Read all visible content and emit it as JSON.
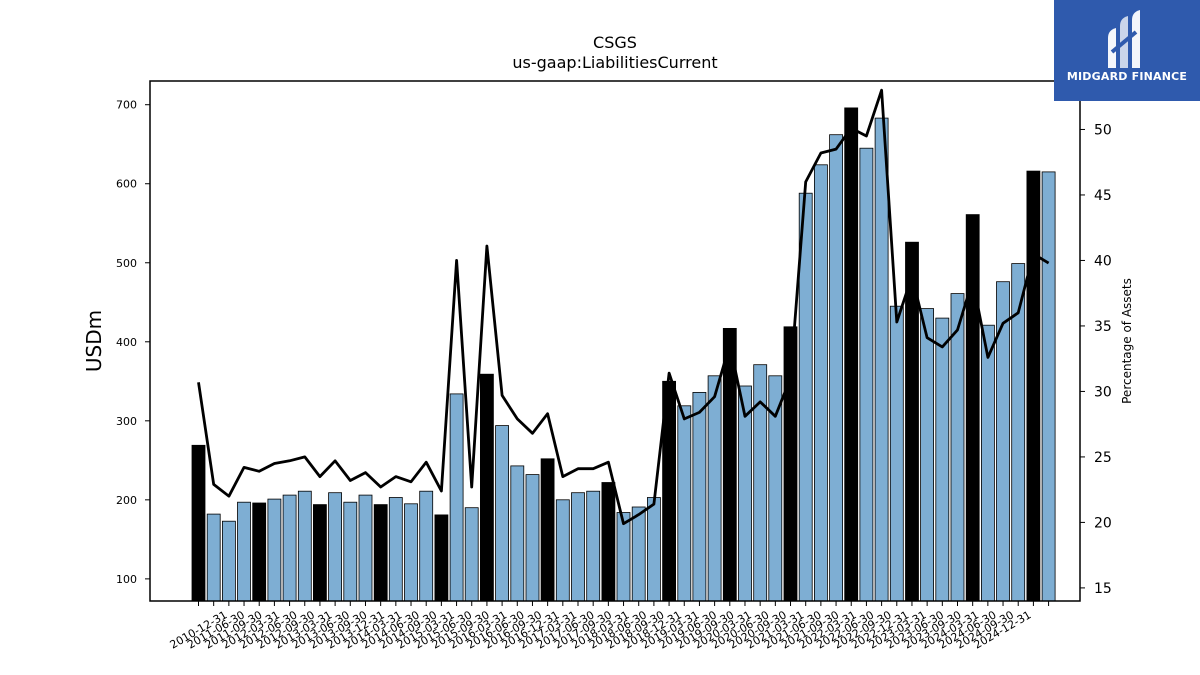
{
  "chart_data": {
    "type": "bar",
    "title": "CSGS",
    "subtitle": "us-gaap:LiabilitiesCurrent",
    "ylabel": "USDm",
    "y2label": "Percentage of Assets",
    "ylim": [
      72,
      730
    ],
    "y2lim": [
      14,
      53.7
    ],
    "yticks": [
      100,
      200,
      300,
      400,
      500,
      600,
      700
    ],
    "y2ticks": [
      15,
      20,
      25,
      30,
      35,
      40,
      45,
      50
    ],
    "categories": [
      "2010-12-31",
      "2011-03-31",
      "2011-06-30",
      "2011-09-30",
      "2011-12-31",
      "2012-03-31",
      "2012-06-30",
      "2012-09-30",
      "2012-12-31",
      "2013-03-31",
      "2013-06-30",
      "2013-09-30",
      "2013-12-31",
      "2014-03-31",
      "2014-06-30",
      "2014-09-30",
      "2014-12-31",
      "2015-03-31",
      "2015-06-30",
      "2015-09-30",
      "2015-12-31",
      "2016-03-31",
      "2016-06-30",
      "2016-09-30",
      "2016-12-31",
      "2017-03-31",
      "2017-06-30",
      "2017-09-30",
      "2017-12-31",
      "2018-03-31",
      "2018-06-30",
      "2018-09-30",
      "2018-12-31",
      "2019-03-31",
      "2019-06-30",
      "2019-09-30",
      "2019-12-31",
      "2020-03-31",
      "2020-06-30",
      "2020-09-30",
      "2020-12-31",
      "2021-03-31",
      "2021-06-30",
      "2021-09-30",
      "2021-12-31",
      "2022-03-31",
      "2022-06-30",
      "2022-09-30",
      "2022-12-31",
      "2023-03-31",
      "2023-06-30",
      "2023-09-30",
      "2023-12-31",
      "2024-03-31",
      "2024-06-30",
      "2024-09-30",
      "2024-12-31"
    ],
    "xtick_labels": [
      "2010-12-31",
      "2011-06-30",
      "2011-09-30",
      "2012-03-31",
      "2012-06-30",
      "2012-09-30",
      "2013-03-31",
      "2013-06-30",
      "2013-09-30",
      "2013-12-31",
      "2014-03-31",
      "2014-06-30",
      "2014-09-30",
      "2015-03-31",
      "2015-06-30",
      "2015-09-30",
      "2016-03-31",
      "2016-06-30",
      "2016-09-30",
      "2016-12-31",
      "2017-03-31",
      "2017-06-30",
      "2017-09-30",
      "2018-03-31",
      "2018-06-30",
      "2018-09-30",
      "2018-12-31",
      "2019-03-31",
      "2019-06-30",
      "2019-09-30",
      "2020-03-31",
      "2020-06-30",
      "2020-09-30",
      "2021-03-31",
      "2021-06-30",
      "2021-09-30",
      "2022-03-31",
      "2022-06-30",
      "2022-09-30",
      "2022-12-31",
      "2023-03-31",
      "2023-06-30",
      "2023-09-30",
      "2024-03-31",
      "2024-06-30",
      "2024-09-30",
      "2024-12-31"
    ],
    "series": [
      {
        "type": "bar",
        "values": [
          269,
          182,
          173,
          197,
          196,
          201,
          206,
          211,
          194,
          209,
          197,
          206,
          194,
          203,
          195,
          211,
          181,
          334,
          190,
          359,
          294,
          243,
          232,
          252,
          200,
          209,
          211,
          222,
          184,
          191,
          203,
          350,
          319,
          336,
          357,
          417,
          344,
          371,
          357,
          419,
          588,
          624,
          662,
          696,
          645,
          683,
          445,
          526,
          442,
          430,
          461,
          561,
          421,
          476,
          499,
          616,
          615
        ],
        "highlight_color": "#000000",
        "color": "#7eaed3"
      },
      {
        "type": "line",
        "axis": "right",
        "color": "#000000",
        "values": [
          30.7,
          22.9,
          22.0,
          24.2,
          23.9,
          24.5,
          24.7,
          25.0,
          23.5,
          24.7,
          23.2,
          23.8,
          22.7,
          23.5,
          23.1,
          24.6,
          22.4,
          40.0,
          22.7,
          41.1,
          29.7,
          27.9,
          26.8,
          28.3,
          23.5,
          24.1,
          24.1,
          24.6,
          19.9,
          20.6,
          21.4,
          31.4,
          27.9,
          28.4,
          29.6,
          33.6,
          28.1,
          29.2,
          28.1,
          31.0,
          46.0,
          48.2,
          48.5,
          50.1,
          49.5,
          53.0,
          35.3,
          38.8,
          34.1,
          33.4,
          34.7,
          38.5,
          32.6,
          35.2,
          36.0,
          40.5,
          39.8
        ]
      }
    ],
    "highlight_indices": [
      0,
      4,
      8,
      12,
      16,
      19,
      23,
      27,
      31,
      35,
      39,
      43,
      47,
      51,
      55
    ]
  },
  "logo": {
    "text": "MIDGARD FINANCE",
    "bg_color": "#2f5aad"
  }
}
